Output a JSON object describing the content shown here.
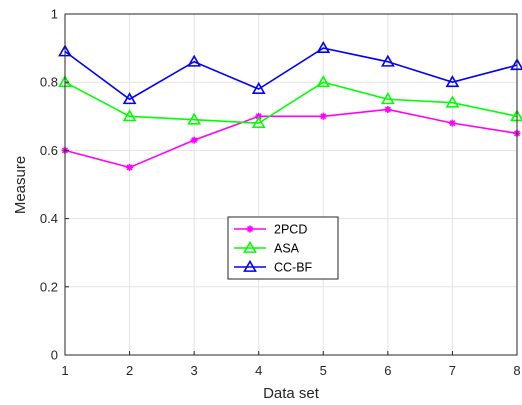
{
  "chart_data": {
    "type": "line",
    "title": "",
    "xlabel": "Data set",
    "ylabel": "Measure",
    "x": [
      1,
      2,
      3,
      4,
      5,
      6,
      7,
      8
    ],
    "xlim": [
      1,
      8
    ],
    "ylim": [
      0,
      1
    ],
    "xticks": [
      "1",
      "2",
      "3",
      "4",
      "5",
      "6",
      "7",
      "8"
    ],
    "yticks": [
      "0",
      "0.2",
      "0.4",
      "0.6",
      "0.8",
      "1"
    ],
    "grid": true,
    "legend_position": "center",
    "series": [
      {
        "name": "2PCD",
        "color": "#ff00ff",
        "marker": "asterisk",
        "values": [
          0.6,
          0.55,
          0.63,
          0.7,
          0.7,
          0.72,
          0.68,
          0.65
        ]
      },
      {
        "name": "ASA",
        "color": "#00ff00",
        "marker": "triangle",
        "values": [
          0.8,
          0.7,
          0.69,
          0.68,
          0.8,
          0.75,
          0.74,
          0.7
        ]
      },
      {
        "name": "CC-BF",
        "color": "#0000ff",
        "marker": "triangle",
        "values": [
          0.89,
          0.75,
          0.86,
          0.78,
          0.9,
          0.86,
          0.8,
          0.85
        ]
      }
    ]
  }
}
